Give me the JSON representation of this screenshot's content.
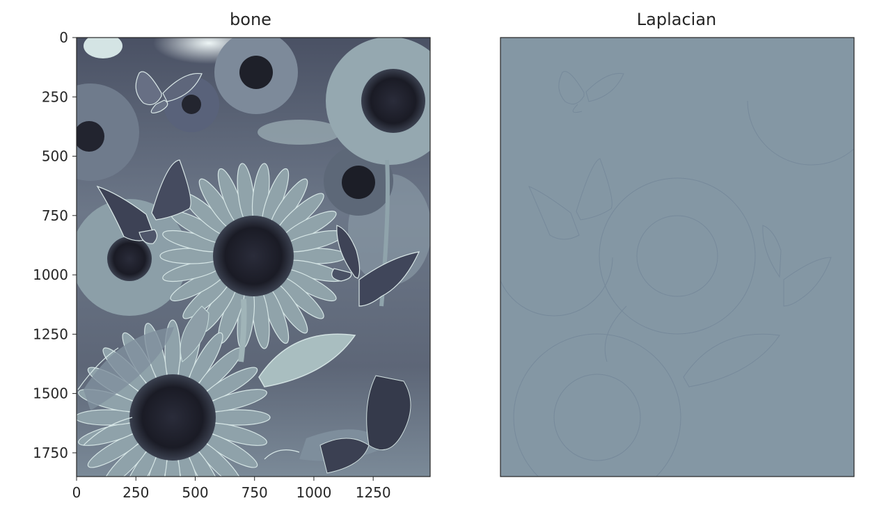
{
  "panels": [
    {
      "title": "bone",
      "colormap": "bone",
      "image_description_tag": "sunflowers-and-butterflies",
      "x_ticks": [
        "0",
        "250",
        "500",
        "750",
        "1000",
        "1250"
      ],
      "x_tick_values": [
        0,
        250,
        500,
        750,
        1000,
        1250
      ],
      "y_ticks": [
        "0",
        "250",
        "500",
        "750",
        "1000",
        "1250",
        "1500",
        "1750"
      ],
      "y_tick_values": [
        0,
        250,
        500,
        750,
        1000,
        1250,
        1500,
        1750
      ],
      "x_range": [
        0,
        1490
      ],
      "y_range": [
        0,
        1850
      ]
    },
    {
      "title": "Laplacian",
      "colormap": "gray-slate",
      "fill_color": "#8497a4"
    }
  ],
  "colors": {
    "axes_edge": "#262626",
    "bone_dark": "#1a1b25",
    "bone_mid": "#6e7a8e",
    "bone_light": "#bfd6d6",
    "laplacian_bg": "#8497a4",
    "laplacian_line": "#75889a"
  }
}
